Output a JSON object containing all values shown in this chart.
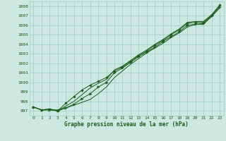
{
  "title": "Graphe pression niveau de la mer (hPa)",
  "bg_color": "#cce8e0",
  "grid_color": "#99cccc",
  "line_color": "#1a5c1a",
  "xlim": [
    -0.5,
    23.5
  ],
  "ylim": [
    996.5,
    1008.5
  ],
  "yticks": [
    997,
    998,
    999,
    1000,
    1001,
    1002,
    1003,
    1004,
    1005,
    1006,
    1007,
    1008
  ],
  "xticks": [
    0,
    1,
    2,
    3,
    4,
    5,
    6,
    7,
    8,
    9,
    10,
    11,
    12,
    13,
    14,
    15,
    16,
    17,
    18,
    19,
    20,
    21,
    22,
    23
  ],
  "series_smooth": [
    997.4,
    997.1,
    997.1,
    997.1,
    997.3,
    997.6,
    997.9,
    998.2,
    998.8,
    999.5,
    1000.5,
    1001.2,
    1001.9,
    1002.5,
    1003.1,
    1003.6,
    1004.1,
    1004.7,
    1005.2,
    1005.8,
    1006.1,
    1006.1,
    1006.9,
    1007.8
  ],
  "series_marked1": [
    997.4,
    997.1,
    997.1,
    997.0,
    997.3,
    997.7,
    998.3,
    998.8,
    999.5,
    1000.0,
    1001.0,
    1001.5,
    1002.1,
    1002.7,
    1003.2,
    1003.7,
    1004.3,
    1004.8,
    1005.3,
    1006.0,
    1006.1,
    1006.2,
    1007.0,
    1007.9
  ],
  "series_marked2": [
    997.4,
    997.1,
    997.2,
    997.0,
    997.8,
    998.5,
    999.2,
    999.7,
    1000.1,
    1000.5,
    1001.2,
    1001.6,
    1002.2,
    1002.8,
    1003.3,
    1003.9,
    1004.4,
    1005.0,
    1005.5,
    1006.2,
    1006.3,
    1006.3,
    1007.0,
    1008.1
  ],
  "series_outer": [
    997.4,
    997.1,
    997.2,
    997.0,
    997.5,
    998.0,
    998.7,
    999.4,
    999.9,
    1000.3,
    1001.3,
    1001.7,
    1002.3,
    1002.9,
    1003.4,
    1004.0,
    1004.5,
    1005.1,
    1005.6,
    1006.3,
    1006.4,
    1006.4,
    1007.1,
    1008.1
  ]
}
